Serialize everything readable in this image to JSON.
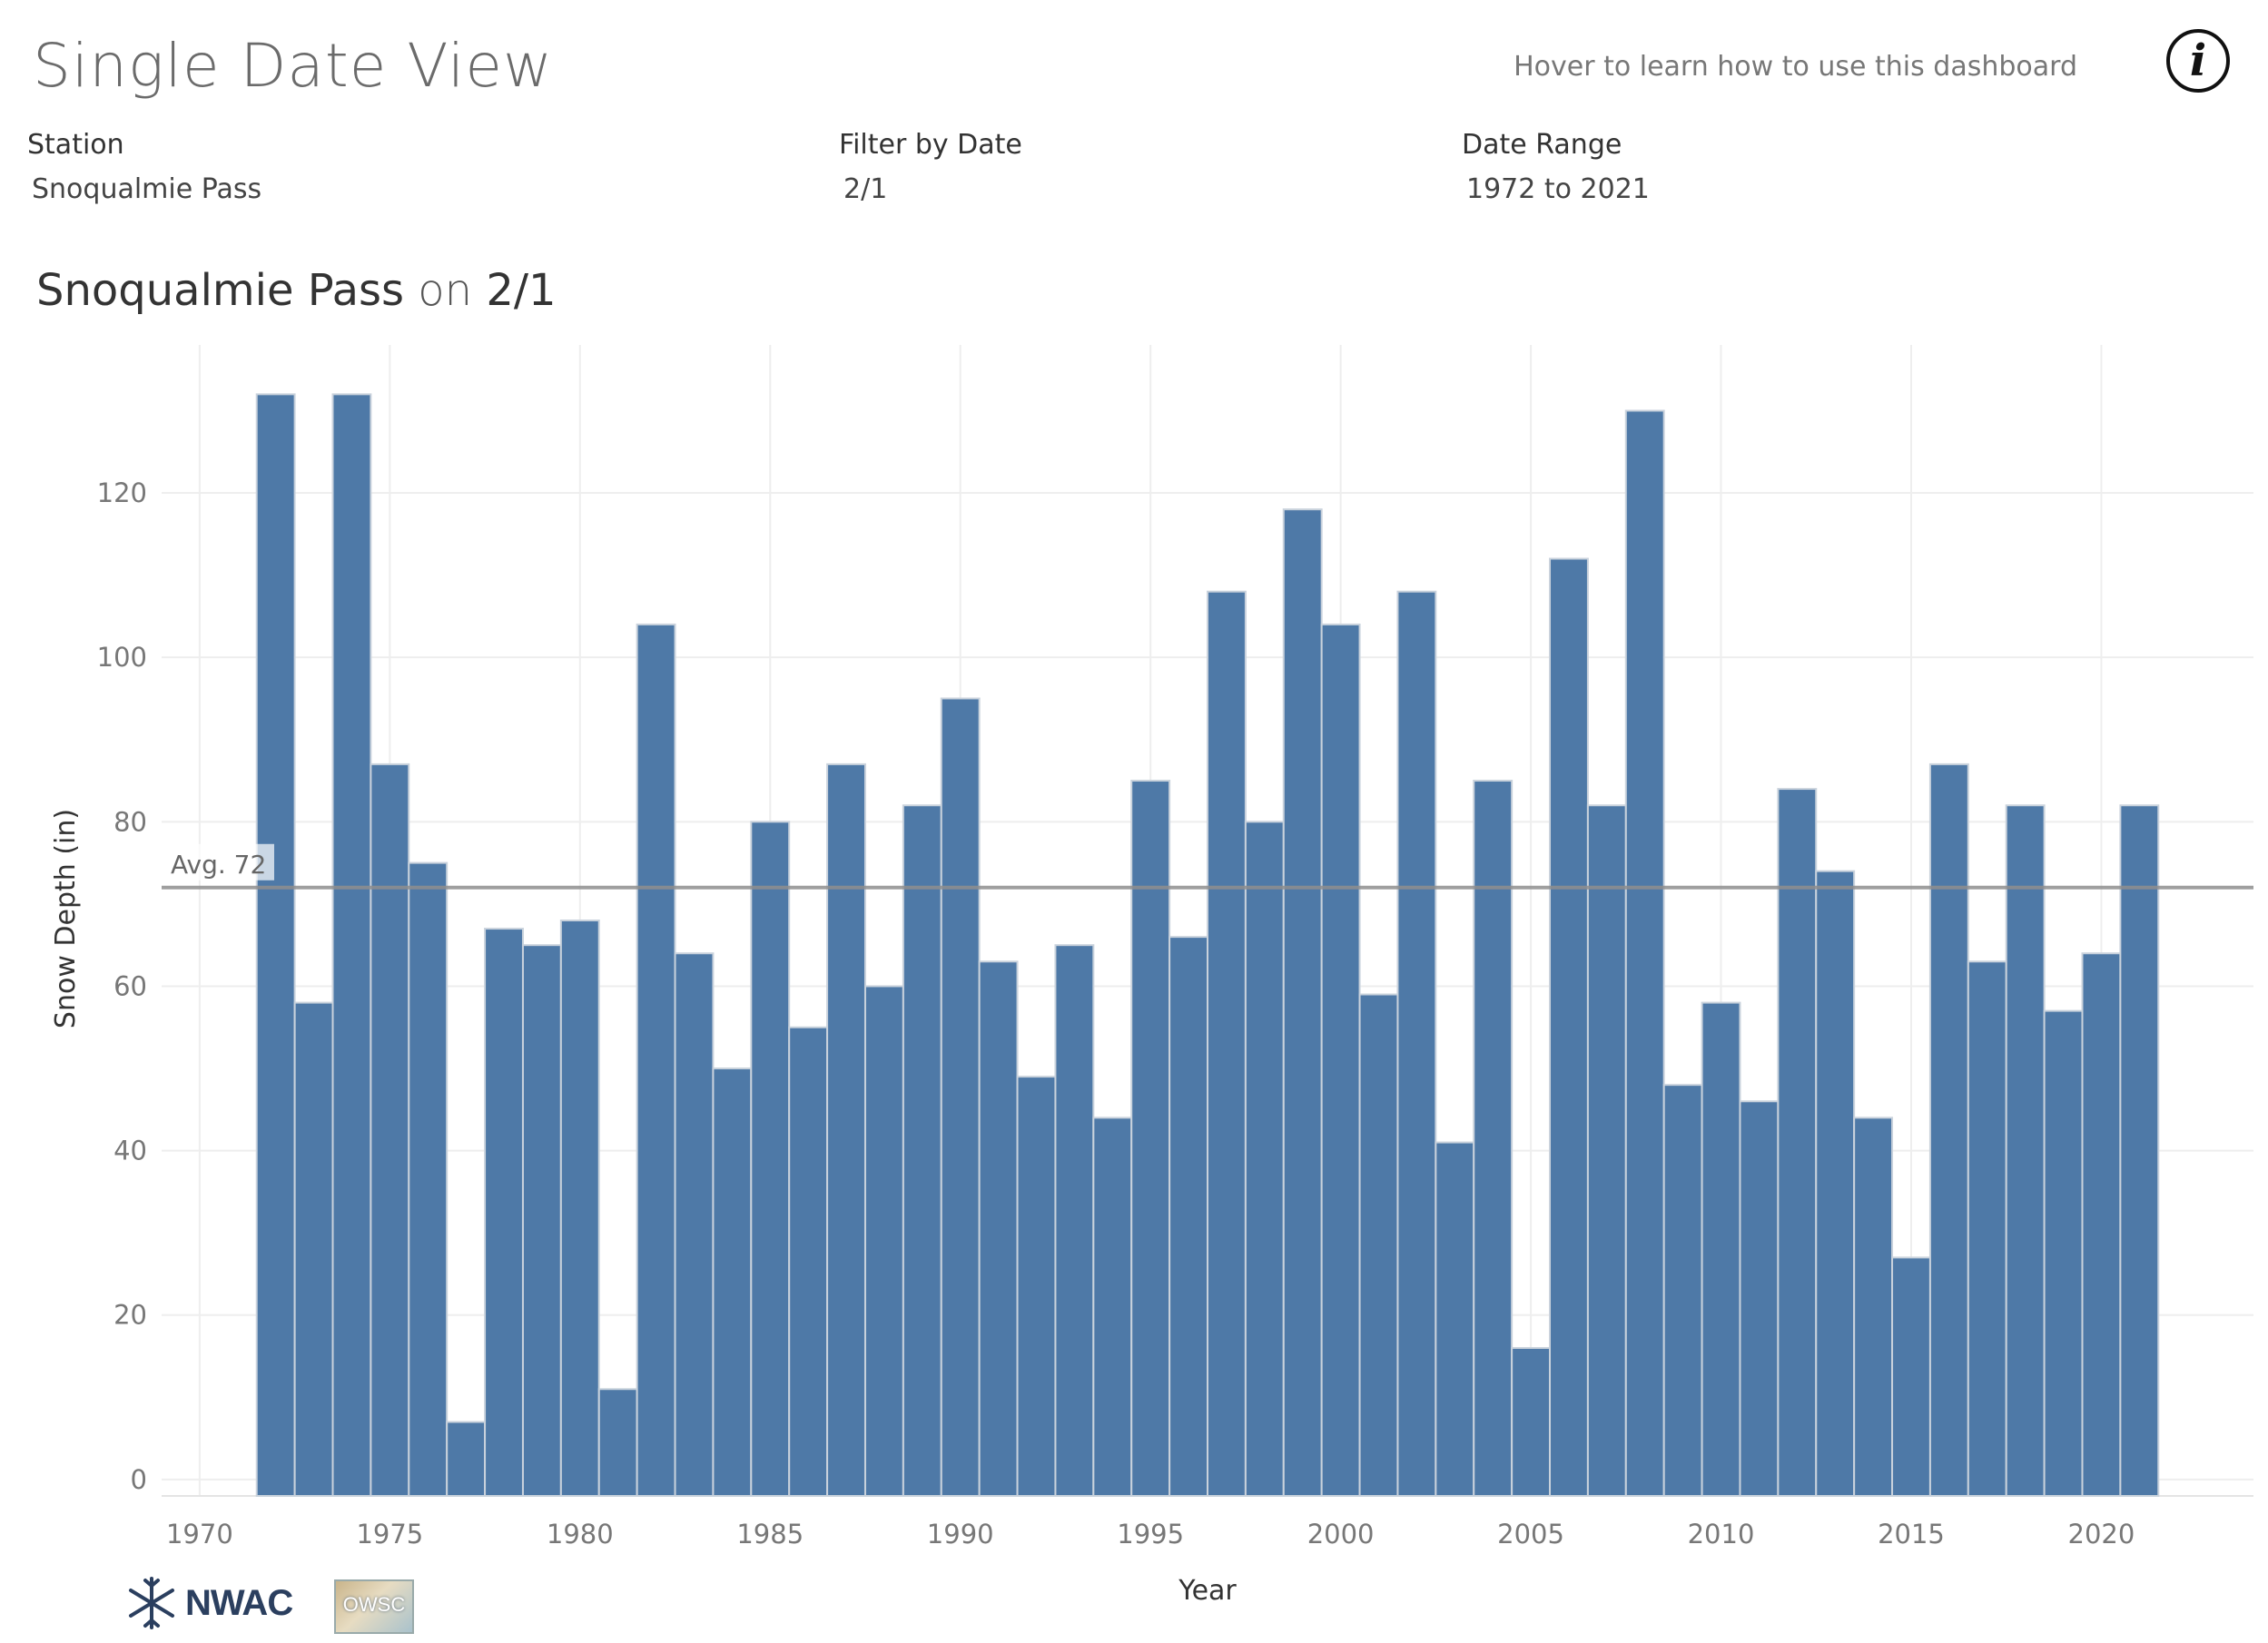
{
  "header": {
    "title": "Single Date View",
    "hover_hint": "Hover to learn how to use this dashboard",
    "info_icon_glyph": "i"
  },
  "filters": {
    "station": {
      "label": "Station",
      "value": "Snoqualmie Pass"
    },
    "date": {
      "label": "Filter by Date",
      "value": "2/1"
    },
    "range": {
      "label": "Date Range",
      "value": "1972 to 2021"
    }
  },
  "chart_header": {
    "station": "Snoqualmie Pass",
    "connector": "on",
    "date": "2/1"
  },
  "logos": {
    "nwac": "NWAC",
    "owsc": "OWSC"
  },
  "colors": {
    "bar": "#4e79a7",
    "bar_edge": "#c9d2dc",
    "avg_line": "#9a9a9a",
    "grid": "#eeeeee"
  },
  "chart_data": {
    "type": "bar",
    "title": "Snoqualmie Pass on 2/1",
    "xlabel": "Year",
    "ylabel": "Snow Depth (in)",
    "xlim": [
      1969,
      2024
    ],
    "ylim": [
      -2,
      138
    ],
    "x_ticks": [
      1970,
      1975,
      1980,
      1985,
      1990,
      1995,
      2000,
      2005,
      2010,
      2015,
      2020
    ],
    "y_ticks": [
      0,
      20,
      40,
      60,
      80,
      100,
      120
    ],
    "average": 72,
    "average_label": "Avg. 72",
    "x": [
      1972,
      1973,
      1974,
      1975,
      1976,
      1977,
      1978,
      1979,
      1980,
      1981,
      1982,
      1983,
      1984,
      1985,
      1986,
      1987,
      1988,
      1989,
      1990,
      1991,
      1992,
      1993,
      1994,
      1995,
      1996,
      1997,
      1998,
      1999,
      2000,
      2001,
      2002,
      2003,
      2004,
      2005,
      2006,
      2007,
      2008,
      2009,
      2010,
      2011,
      2012,
      2013,
      2014,
      2015,
      2016,
      2017,
      2018,
      2019,
      2020,
      2021
    ],
    "values": [
      132,
      58,
      132,
      87,
      75,
      7,
      67,
      65,
      68,
      11,
      104,
      64,
      50,
      80,
      55,
      87,
      60,
      82,
      95,
      63,
      49,
      65,
      44,
      85,
      66,
      108,
      80,
      118,
      104,
      59,
      108,
      41,
      85,
      16,
      112,
      82,
      130,
      48,
      58,
      46,
      84,
      74,
      44,
      27,
      87,
      63,
      82,
      57,
      64,
      82
    ]
  }
}
